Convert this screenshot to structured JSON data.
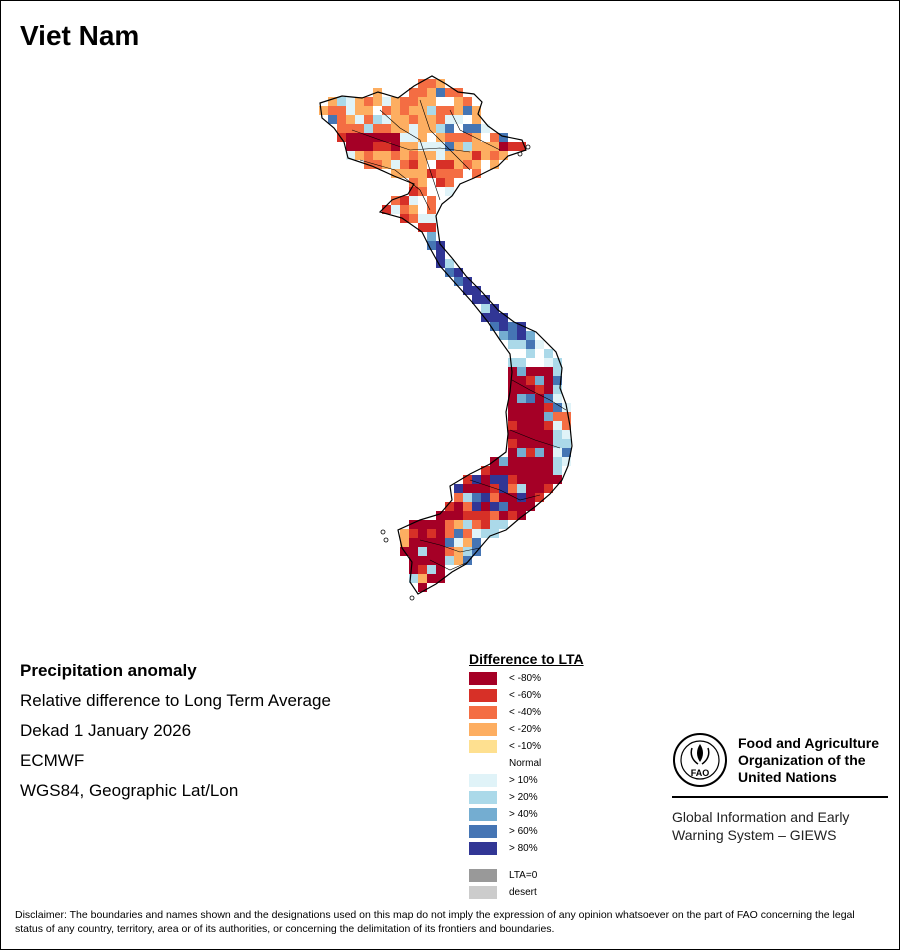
{
  "country": "Viet Nam",
  "info": {
    "heading": "Precipitation anomaly",
    "line1": "Relative difference to Long Term Average",
    "line2": "Dekad 1 January 2026",
    "line3": "ECMWF",
    "line4": "WGS84, Geographic Lat/Lon"
  },
  "legend": {
    "title": "Difference to LTA",
    "items": [
      {
        "label": "< -80%",
        "color": "#a50026"
      },
      {
        "label": "< -60%",
        "color": "#d73027"
      },
      {
        "label": "< -40%",
        "color": "#f46d43"
      },
      {
        "label": "< -20%",
        "color": "#fdae61"
      },
      {
        "label": "< -10%",
        "color": "#fee090"
      },
      {
        "label": "Normal",
        "color": "#ffffff"
      },
      {
        "label": "> 10%",
        "color": "#e0f3f8"
      },
      {
        "label": "> 20%",
        "color": "#abd9e9"
      },
      {
        "label": "> 40%",
        "color": "#74add1"
      },
      {
        "label": "> 60%",
        "color": "#4575b4"
      },
      {
        "label": "> 80%",
        "color": "#313695"
      }
    ],
    "extra": [
      {
        "label": "LTA=0",
        "color": "#999999"
      },
      {
        "label": "desert",
        "color": "#cccccc"
      }
    ]
  },
  "fao": {
    "org_line1": "Food and Agriculture",
    "org_line2": "Organization of the",
    "org_line3": "United Nations",
    "emblem_text": "FAO",
    "system_line1": "Global Information and Early",
    "system_line2": "Warning System – GIEWS"
  },
  "disclaimer": "Disclaimer: The boundaries and names shown and the designations used on this map do not imply the expression of any opinion whatsoever on the part of FAO concerning the legal status of any country, territory, area or of its authorities, or concerning the delimitation of its frontiers and boundaries."
}
